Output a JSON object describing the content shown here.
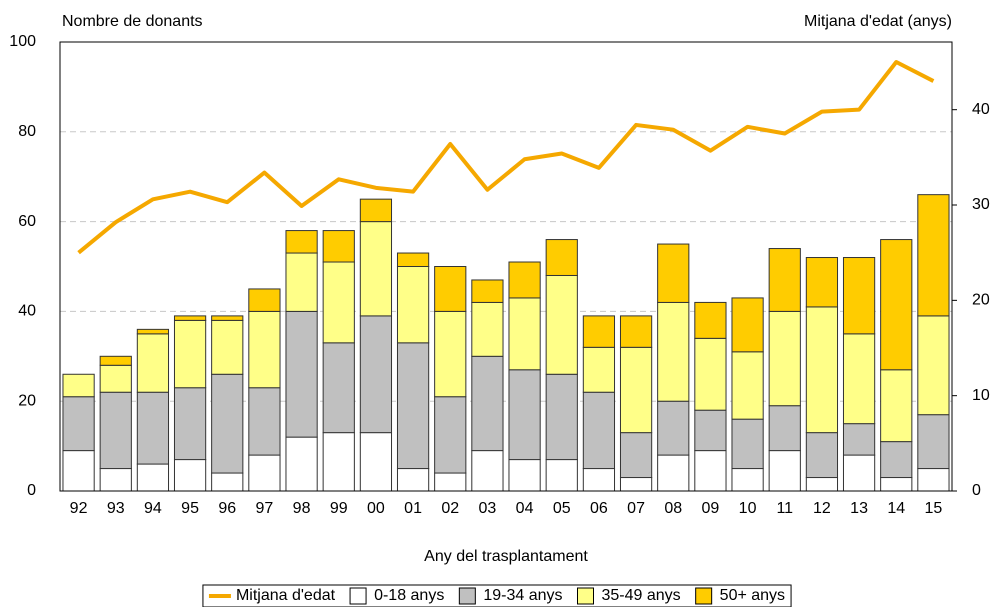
{
  "chart_data": {
    "type": "bar",
    "stacked": true,
    "y_title": "Nombre de donants",
    "y2_title": "Mitjana d'edat (anys)",
    "x_title": "Any del trasplantament",
    "categories": [
      "92",
      "93",
      "94",
      "95",
      "96",
      "97",
      "98",
      "99",
      "00",
      "01",
      "02",
      "03",
      "04",
      "05",
      "06",
      "07",
      "08",
      "09",
      "10",
      "11",
      "12",
      "13",
      "14",
      "15"
    ],
    "series": [
      {
        "name": "Mitjana d'edat",
        "type": "line",
        "axis": "y2",
        "color": "#f5a800",
        "values": [
          25.0,
          28.2,
          30.6,
          31.4,
          30.3,
          33.4,
          29.9,
          32.7,
          31.8,
          31.4,
          36.4,
          31.6,
          34.8,
          35.4,
          33.9,
          38.4,
          37.9,
          35.7,
          38.2,
          37.5,
          39.8,
          40.0,
          45.0,
          43.0
        ]
      },
      {
        "name": "0-18 anys",
        "color": "#ffffff",
        "values": [
          9,
          5,
          6,
          7,
          4,
          8,
          12,
          13,
          13,
          5,
          4,
          9,
          7,
          7,
          5,
          3,
          8,
          9,
          5,
          9,
          3,
          8,
          3,
          5
        ]
      },
      {
        "name": "19-34 anys",
        "color": "#c0c0c0",
        "values": [
          12,
          17,
          16,
          16,
          22,
          15,
          28,
          20,
          26,
          28,
          17,
          21,
          20,
          19,
          17,
          10,
          12,
          9,
          11,
          10,
          10,
          7,
          8,
          12
        ]
      },
      {
        "name": "35-49 anys",
        "color": "#ffff88",
        "values": [
          5,
          6,
          13,
          15,
          12,
          17,
          13,
          18,
          21,
          17,
          19,
          12,
          16,
          22,
          10,
          19,
          22,
          16,
          15,
          21,
          28,
          20,
          16,
          22
        ]
      },
      {
        "name": "50+ anys",
        "color": "#ffcc00",
        "values": [
          0,
          2,
          1,
          1,
          1,
          5,
          5,
          7,
          5,
          3,
          10,
          5,
          8,
          8,
          7,
          7,
          13,
          8,
          12,
          14,
          11,
          17,
          29,
          27
        ]
      }
    ],
    "ylim": [
      0,
      100
    ],
    "yticks": [
      0,
      20,
      40,
      60,
      80,
      100
    ],
    "y2lim": [
      0,
      47.1
    ],
    "y2ticks": [
      0,
      10,
      20,
      30,
      40
    ],
    "grid": true
  }
}
